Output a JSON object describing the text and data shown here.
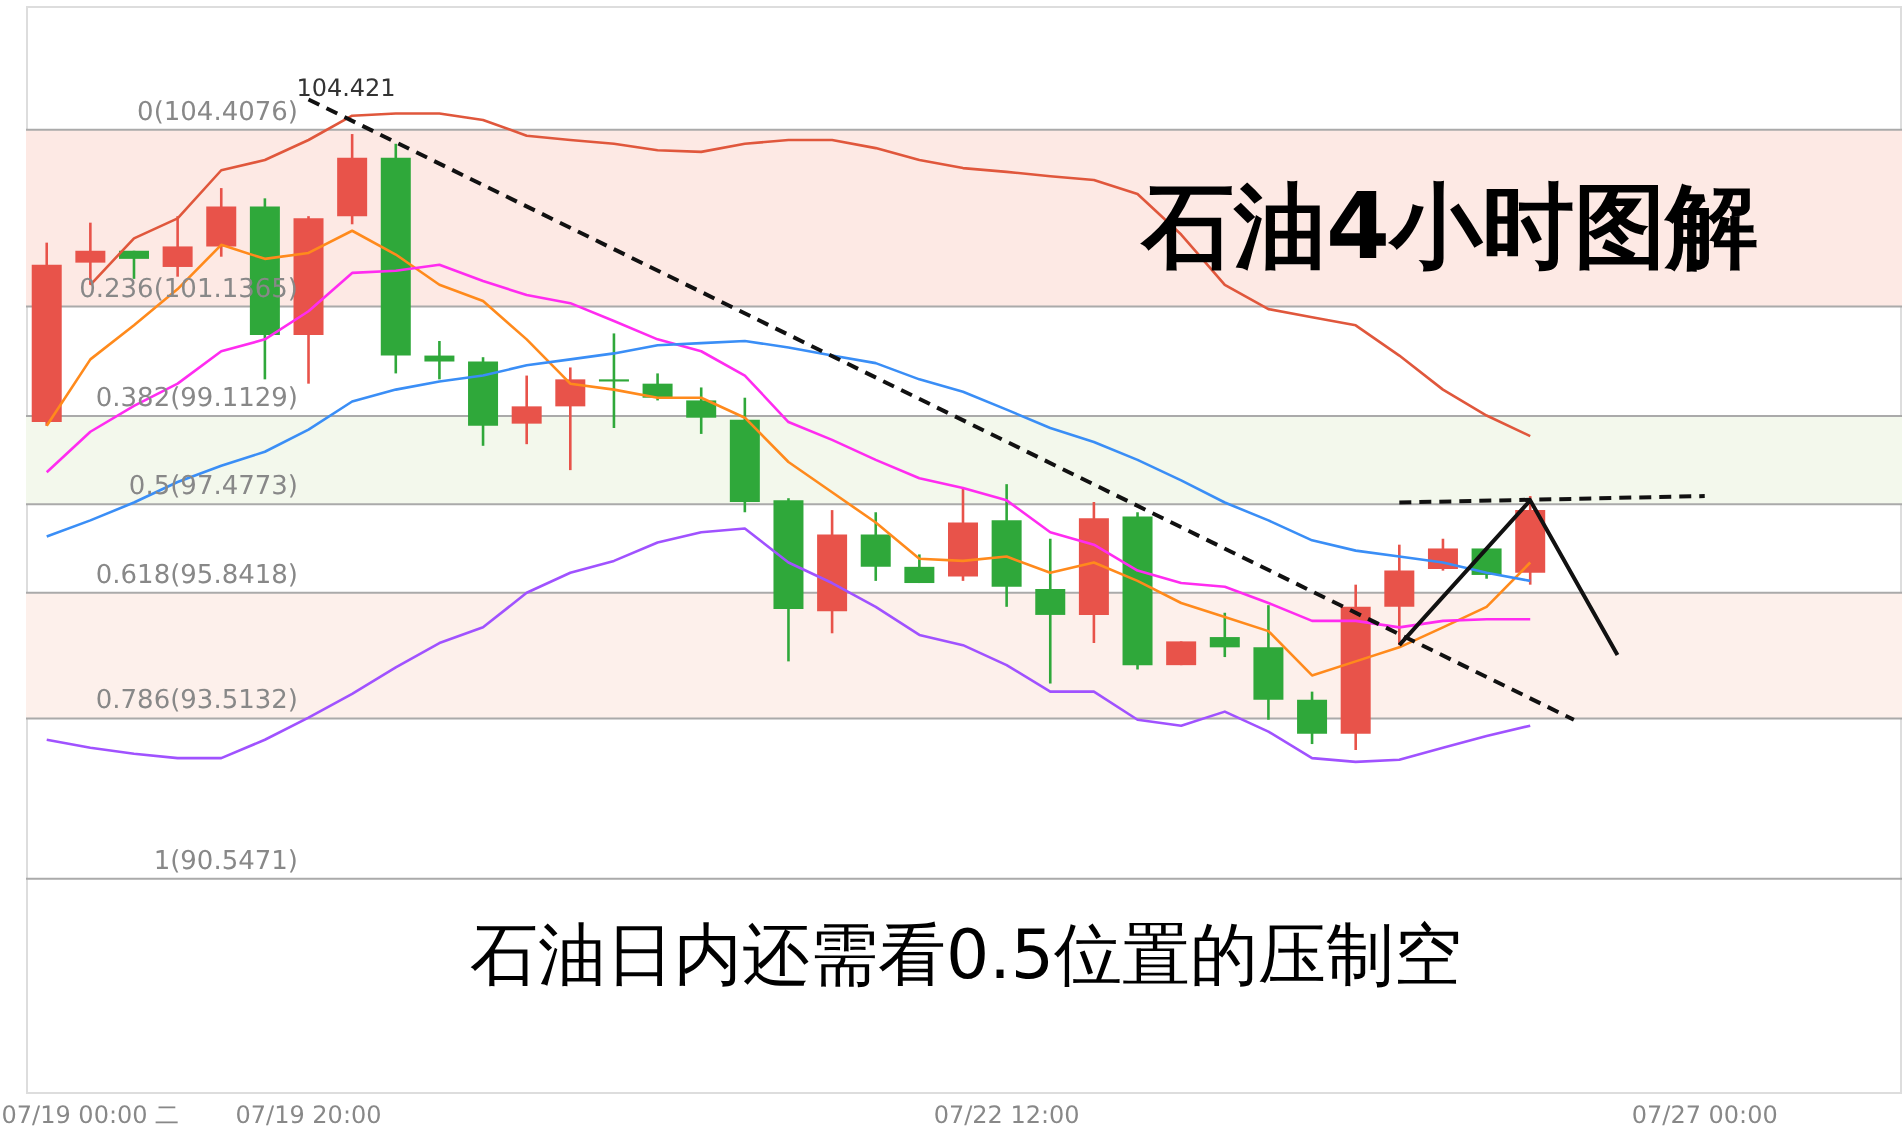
{
  "chart_data": {
    "type": "candlestick",
    "title": "石油4小时图解",
    "annotations": [
      "104.421",
      "石油日内还需看0.5位置的压制空"
    ],
    "categories": [
      null,
      "07/19 00:00 二",
      null,
      null,
      null,
      null,
      "07/19 20:00",
      null,
      null,
      null,
      null,
      null,
      null,
      null,
      null,
      null,
      null,
      null,
      null,
      null,
      null,
      null,
      "07/22 12:00",
      null,
      null,
      null,
      null,
      null,
      null,
      null,
      null,
      null,
      null,
      null,
      null,
      null,
      null,
      null,
      "07/27 00:00",
      null,
      null,
      null,
      null
    ],
    "ohlc": [
      [
        99.0,
        102.32,
        98.93,
        101.91
      ],
      [
        101.95,
        102.69,
        101.54,
        102.17
      ],
      [
        102.17,
        102.17,
        101.65,
        102.02
      ],
      [
        101.87,
        102.81,
        101.69,
        102.25
      ],
      [
        102.25,
        103.33,
        102.06,
        102.99
      ],
      [
        102.99,
        103.14,
        99.79,
        100.61
      ],
      [
        100.61,
        102.81,
        99.71,
        102.77
      ],
      [
        102.81,
        104.33,
        102.66,
        103.89
      ],
      [
        103.89,
        104.15,
        99.9,
        100.23
      ],
      [
        100.23,
        100.5,
        99.79,
        100.12
      ],
      [
        100.12,
        100.2,
        98.56,
        98.93
      ],
      [
        98.97,
        99.86,
        98.59,
        99.29
      ],
      [
        99.29,
        100.01,
        98.11,
        99.79
      ],
      [
        99.79,
        100.64,
        98.89,
        99.75
      ],
      [
        99.71,
        99.9,
        99.4,
        99.45
      ],
      [
        99.4,
        99.64,
        98.78,
        99.08
      ],
      [
        99.04,
        99.45,
        97.33,
        97.52
      ],
      [
        97.55,
        97.59,
        94.57,
        95.54
      ],
      [
        95.5,
        97.37,
        95.09,
        96.92
      ],
      [
        96.92,
        97.33,
        96.06,
        96.32
      ],
      [
        96.32,
        96.55,
        96.02,
        96.02
      ],
      [
        96.14,
        97.77,
        96.06,
        97.14
      ],
      [
        97.18,
        97.85,
        95.58,
        95.95
      ],
      [
        95.91,
        96.84,
        94.16,
        95.43
      ],
      [
        95.43,
        97.52,
        94.91,
        97.22
      ],
      [
        97.25,
        97.33,
        94.42,
        94.5
      ],
      [
        94.5,
        94.94,
        94.5,
        94.94
      ],
      [
        95.02,
        95.47,
        94.65,
        94.83
      ],
      [
        94.83,
        95.61,
        93.49,
        93.86
      ],
      [
        93.86,
        94.01,
        93.04,
        93.23
      ],
      [
        93.23,
        95.99,
        92.93,
        95.58
      ],
      [
        95.58,
        96.73,
        94.87,
        96.25
      ],
      [
        96.28,
        96.84,
        96.25,
        96.66
      ],
      [
        96.66,
        96.66,
        96.1,
        96.17
      ],
      [
        96.21,
        97.63,
        95.99,
        97.37
      ],
      null,
      null,
      null,
      null,
      null,
      null,
      null,
      null
    ],
    "colors": [
      "#e8534a",
      "#e8534a",
      "#2fa83a",
      "#e8534a",
      "#e8534a",
      "#2fa83a",
      "#e8534a",
      "#e8534a",
      "#2fa83a",
      "#2fa83a",
      "#2fa83a",
      "#e8534a",
      "#e8534a",
      "#2fa83a",
      "#2fa83a",
      "#2fa83a",
      "#2fa83a",
      "#2fa83a",
      "#e8534a",
      "#2fa83a",
      "#2fa83a",
      "#e8534a",
      "#2fa83a",
      "#2fa83a",
      "#e8534a",
      "#2fa83a",
      "#e8534a",
      "#2fa83a",
      "#2fa83a",
      "#2fa83a",
      "#e8534a",
      "#e8534a",
      "#e8534a",
      "#2fa83a",
      "#e8534a",
      null,
      null,
      null,
      null,
      null,
      null,
      null,
      null
    ],
    "series": [
      {
        "type": "line",
        "color": "#e0573c",
        "values": [
          null,
          101.54,
          102.4,
          102.77,
          103.66,
          103.85,
          104.22,
          104.67,
          104.71,
          104.71,
          104.59,
          104.3,
          104.22,
          104.15,
          104.03,
          104.0,
          104.15,
          104.22,
          104.22,
          104.07,
          103.85,
          103.7,
          103.63,
          103.55,
          103.48,
          103.22,
          102.47,
          101.54,
          101.09,
          100.94,
          100.79,
          100.23,
          99.6,
          99.12,
          98.74,
          null,
          null,
          null,
          null,
          null,
          null,
          null,
          null
        ]
      },
      {
        "type": "line",
        "color": "#ff8a1c",
        "values": [
          98.93,
          100.16,
          100.79,
          101.46,
          102.28,
          102.02,
          102.13,
          102.54,
          102.1,
          101.54,
          101.24,
          100.53,
          99.71,
          99.6,
          99.45,
          99.45,
          99.08,
          98.26,
          97.7,
          97.14,
          96.47,
          96.43,
          96.51,
          96.21,
          96.4,
          96.06,
          95.65,
          95.39,
          95.13,
          94.31,
          94.57,
          94.83,
          95.2,
          95.58,
          96.4,
          null,
          null,
          null,
          null,
          null,
          null,
          null,
          null
        ]
      },
      {
        "type": "line",
        "color": "#ff2cf0",
        "values": [
          98.07,
          98.82,
          99.3,
          99.71,
          100.31,
          100.53,
          101.05,
          101.76,
          101.8,
          101.91,
          101.61,
          101.35,
          101.2,
          100.87,
          100.53,
          100.31,
          99.86,
          99.0,
          98.67,
          98.3,
          97.96,
          97.78,
          97.55,
          96.96,
          96.73,
          96.25,
          96.02,
          95.95,
          95.65,
          95.32,
          95.32,
          95.2,
          95.32,
          95.35,
          95.35,
          null,
          null,
          null,
          null,
          null,
          null,
          null,
          null
        ]
      },
      {
        "type": "line",
        "color": "#3a8ef6",
        "values": [
          96.88,
          97.18,
          97.51,
          97.89,
          98.19,
          98.45,
          98.86,
          99.38,
          99.6,
          99.75,
          99.86,
          100.05,
          100.16,
          100.27,
          100.42,
          100.46,
          100.5,
          100.38,
          100.23,
          100.09,
          99.79,
          99.56,
          99.23,
          98.89,
          98.63,
          98.3,
          97.92,
          97.51,
          97.18,
          96.81,
          96.62,
          96.51,
          96.4,
          96.21,
          96.06,
          null,
          null,
          null,
          null,
          null,
          null,
          null,
          null
        ]
      },
      {
        "type": "line",
        "color": "#a052ff",
        "values": [
          93.12,
          92.97,
          92.86,
          92.78,
          92.78,
          93.12,
          93.53,
          93.97,
          94.46,
          94.91,
          95.2,
          95.84,
          96.21,
          96.43,
          96.77,
          96.96,
          97.03,
          96.4,
          96.02,
          95.58,
          95.06,
          94.87,
          94.5,
          94.01,
          94.01,
          93.49,
          93.38,
          93.64,
          93.27,
          92.78,
          92.71,
          92.75,
          92.97,
          93.19,
          93.38,
          null,
          null,
          null,
          null,
          null,
          null,
          null,
          null
        ]
      },
      {
        "type": "line",
        "color": "#111111",
        "line_style": "dashed",
        "values": [
          null,
          null,
          null,
          null,
          null,
          null,
          104.97,
          null,
          null,
          null,
          null,
          null,
          null,
          null,
          null,
          null,
          null,
          null,
          null,
          null,
          null,
          null,
          null,
          null,
          null,
          null,
          null,
          null,
          null,
          null,
          null,
          null,
          null,
          null,
          null,
          93.49,
          null,
          null,
          null,
          null,
          null,
          null,
          null
        ]
      },
      {
        "type": "line",
        "color": "#111111",
        "line_style": "dashed",
        "values": [
          null,
          null,
          null,
          null,
          null,
          null,
          null,
          null,
          null,
          null,
          null,
          null,
          null,
          null,
          null,
          null,
          null,
          null,
          null,
          null,
          null,
          null,
          null,
          null,
          null,
          null,
          null,
          null,
          null,
          null,
          null,
          97.51,
          null,
          null,
          null,
          null,
          null,
          null,
          97.63,
          null,
          null,
          null,
          null
        ]
      },
      {
        "type": "line",
        "color": "#111111",
        "line_style": "solid",
        "values": [
          null,
          null,
          null,
          null,
          null,
          null,
          null,
          null,
          null,
          null,
          null,
          null,
          null,
          null,
          null,
          null,
          null,
          null,
          null,
          null,
          null,
          null,
          null,
          null,
          null,
          null,
          null,
          null,
          null,
          null,
          null,
          94.87,
          null,
          null,
          97.55,
          null,
          94.69,
          null,
          null,
          null,
          null,
          null,
          null
        ]
      }
    ],
    "ylim": [
      86.6,
      106.7
    ],
    "tick_labels": "x",
    "grid": false,
    "marker": "none",
    "ref_lines": [
      {
        "axis": "y",
        "value": 104.4076,
        "label": "0(104.4076)",
        "color": "#aaaaaa"
      },
      {
        "axis": "y",
        "value": 101.1365,
        "label": "0.236(101.1365)",
        "color": "#aaaaaa"
      },
      {
        "axis": "y",
        "value": 99.1129,
        "label": "0.382(99.1129)",
        "color": "#aaaaaa"
      },
      {
        "axis": "y",
        "value": 97.4773,
        "label": "0.5(97.4773)",
        "color": "#aaaaaa"
      },
      {
        "axis": "y",
        "value": 95.8418,
        "label": "0.618(95.8418)",
        "color": "#aaaaaa"
      },
      {
        "axis": "y",
        "value": 93.5132,
        "label": "0.786(93.5132)",
        "color": "#aaaaaa"
      },
      {
        "axis": "y",
        "value": 90.5471,
        "label": "1(90.5471)",
        "color": "#aaaaaa"
      }
    ],
    "bands": [
      {
        "axis": "y",
        "from": 101.1365,
        "to": 104.4076,
        "color": "#fde9e4"
      },
      {
        "axis": "y",
        "from": 97.4773,
        "to": 99.1129,
        "color": "#f3f8ec"
      },
      {
        "axis": "y",
        "from": 93.5132,
        "to": 95.8418,
        "color": "#fdf0eb"
      }
    ]
  }
}
